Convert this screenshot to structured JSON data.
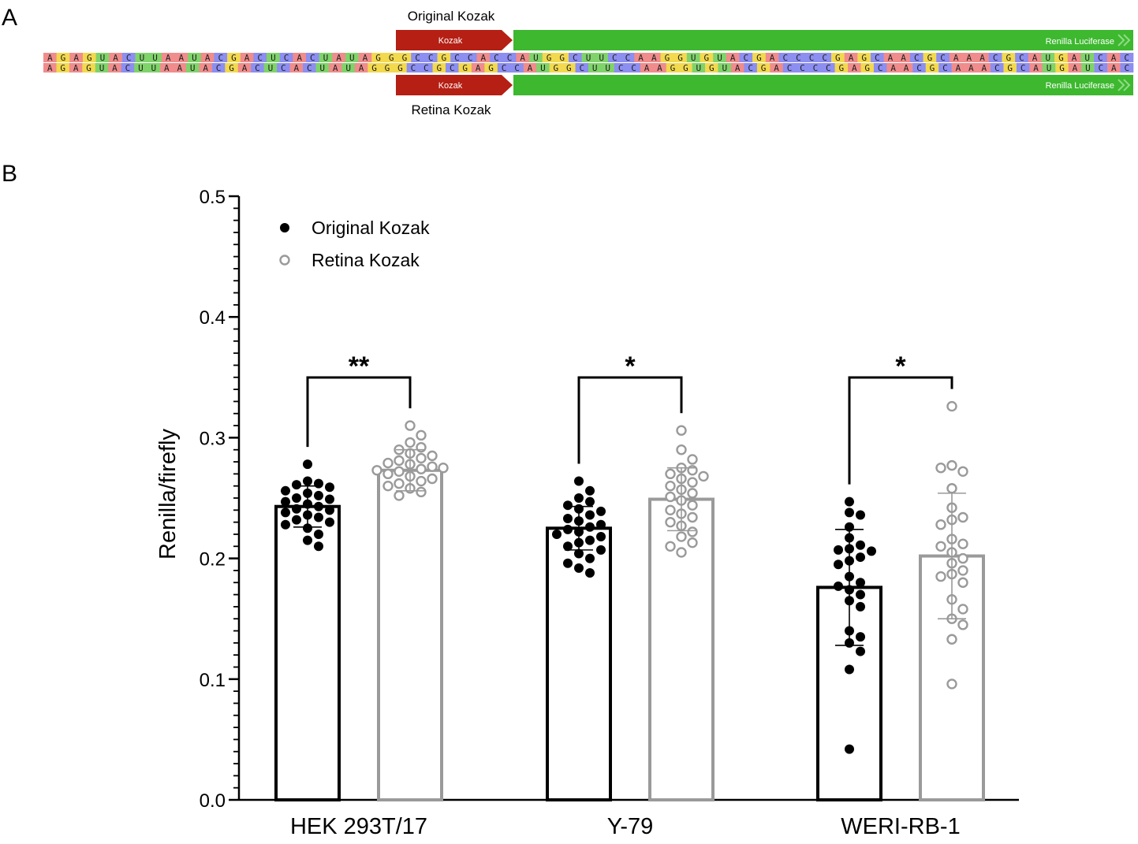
{
  "panel_a": {
    "letter": "A",
    "top_feature_label": "Original Kozak",
    "bottom_feature_label": "Retina Kozak",
    "arrow_kozak_label": "Kozak",
    "arrow_renilla_label": "Renilla Luciferase",
    "sequence_top": "AGAGUACUUAAUACGACUCACUAUAGGGCCGCCACCAUGGCUUCCAAGGUGUACGACCCCGAGCAACGCAAACGCAUGAUCAC",
    "sequence_bottom": "AGAGUACUUAAUACGACUCACUAUAGGGCCGCGAGCCAUGGCUUCCAAGGUGUACGACCCCGAGCAACGCAAACGCAUGAUCAC",
    "nucleotide_colors": {
      "A": "#f08c8c",
      "G": "#f2d94e",
      "U": "#7fd36a",
      "C": "#8c8ef0"
    },
    "kozak_color": "#b51f14",
    "renilla_color": "#3db82f"
  },
  "panel_b": {
    "letter": "B",
    "chart_data": {
      "type": "bar",
      "categories": [
        "HEK 293T/17",
        "Y-79",
        "WERI-RB-1"
      ],
      "ylabel": "Renilla/firefly",
      "xlabel": "",
      "ylim": [
        0,
        0.5
      ],
      "yticks": [
        "0.0",
        "0.1",
        "0.2",
        "0.3",
        "0.4",
        "0.5"
      ],
      "legend_position": "top-left",
      "series": [
        {
          "name": "Original Kozak",
          "marker": "filled-circle",
          "color": "#000000",
          "values": [
            0.243,
            0.225,
            0.176
          ],
          "sd": [
            0.017,
            0.018,
            0.048
          ],
          "points": [
            [
              0.278,
              0.264,
              0.262,
              0.261,
              0.259,
              0.256,
              0.254,
              0.252,
              0.25,
              0.249,
              0.247,
              0.245,
              0.243,
              0.241,
              0.24,
              0.238,
              0.236,
              0.234,
              0.232,
              0.23,
              0.228,
              0.225,
              0.22,
              0.215,
              0.21
            ],
            [
              0.264,
              0.256,
              0.25,
              0.247,
              0.244,
              0.241,
              0.239,
              0.236,
              0.233,
              0.231,
              0.228,
              0.226,
              0.224,
              0.222,
              0.22,
              0.218,
              0.215,
              0.213,
              0.21,
              0.207,
              0.204,
              0.2,
              0.196,
              0.192,
              0.188
            ],
            [
              0.247,
              0.238,
              0.236,
              0.226,
              0.217,
              0.211,
              0.208,
              0.207,
              0.206,
              0.201,
              0.198,
              0.195,
              0.185,
              0.18,
              0.177,
              0.174,
              0.17,
              0.165,
              0.16,
              0.14,
              0.135,
              0.13,
              0.123,
              0.108,
              0.042
            ]
          ]
        },
        {
          "name": "Retina Kozak",
          "marker": "open-circle",
          "color": "#9a9a9a",
          "values": [
            0.273,
            0.249,
            0.202
          ],
          "sd": [
            0.017,
            0.026,
            0.052
          ],
          "points": [
            [
              0.31,
              0.302,
              0.296,
              0.292,
              0.29,
              0.287,
              0.285,
              0.283,
              0.281,
              0.279,
              0.278,
              0.276,
              0.275,
              0.274,
              0.273,
              0.272,
              0.27,
              0.268,
              0.266,
              0.264,
              0.262,
              0.26,
              0.258,
              0.255,
              0.252
            ],
            [
              0.306,
              0.29,
              0.282,
              0.275,
              0.273,
              0.27,
              0.268,
              0.266,
              0.263,
              0.26,
              0.257,
              0.254,
              0.251,
              0.248,
              0.244,
              0.24,
              0.237,
              0.234,
              0.23,
              0.227,
              0.222,
              0.218,
              0.213,
              0.21,
              0.205
            ],
            [
              0.326,
              0.277,
              0.272,
              0.275,
              0.258,
              0.242,
              0.234,
              0.232,
              0.228,
              0.216,
              0.212,
              0.21,
              0.205,
              0.2,
              0.196,
              0.19,
              0.187,
              0.185,
              0.18,
              0.166,
              0.158,
              0.15,
              0.145,
              0.133,
              0.096
            ]
          ]
        }
      ],
      "comparisons": [
        {
          "category": "HEK 293T/17",
          "label": "**"
        },
        {
          "category": "Y-79",
          "label": "*"
        },
        {
          "category": "WERI-RB-1",
          "label": "*"
        }
      ]
    }
  }
}
